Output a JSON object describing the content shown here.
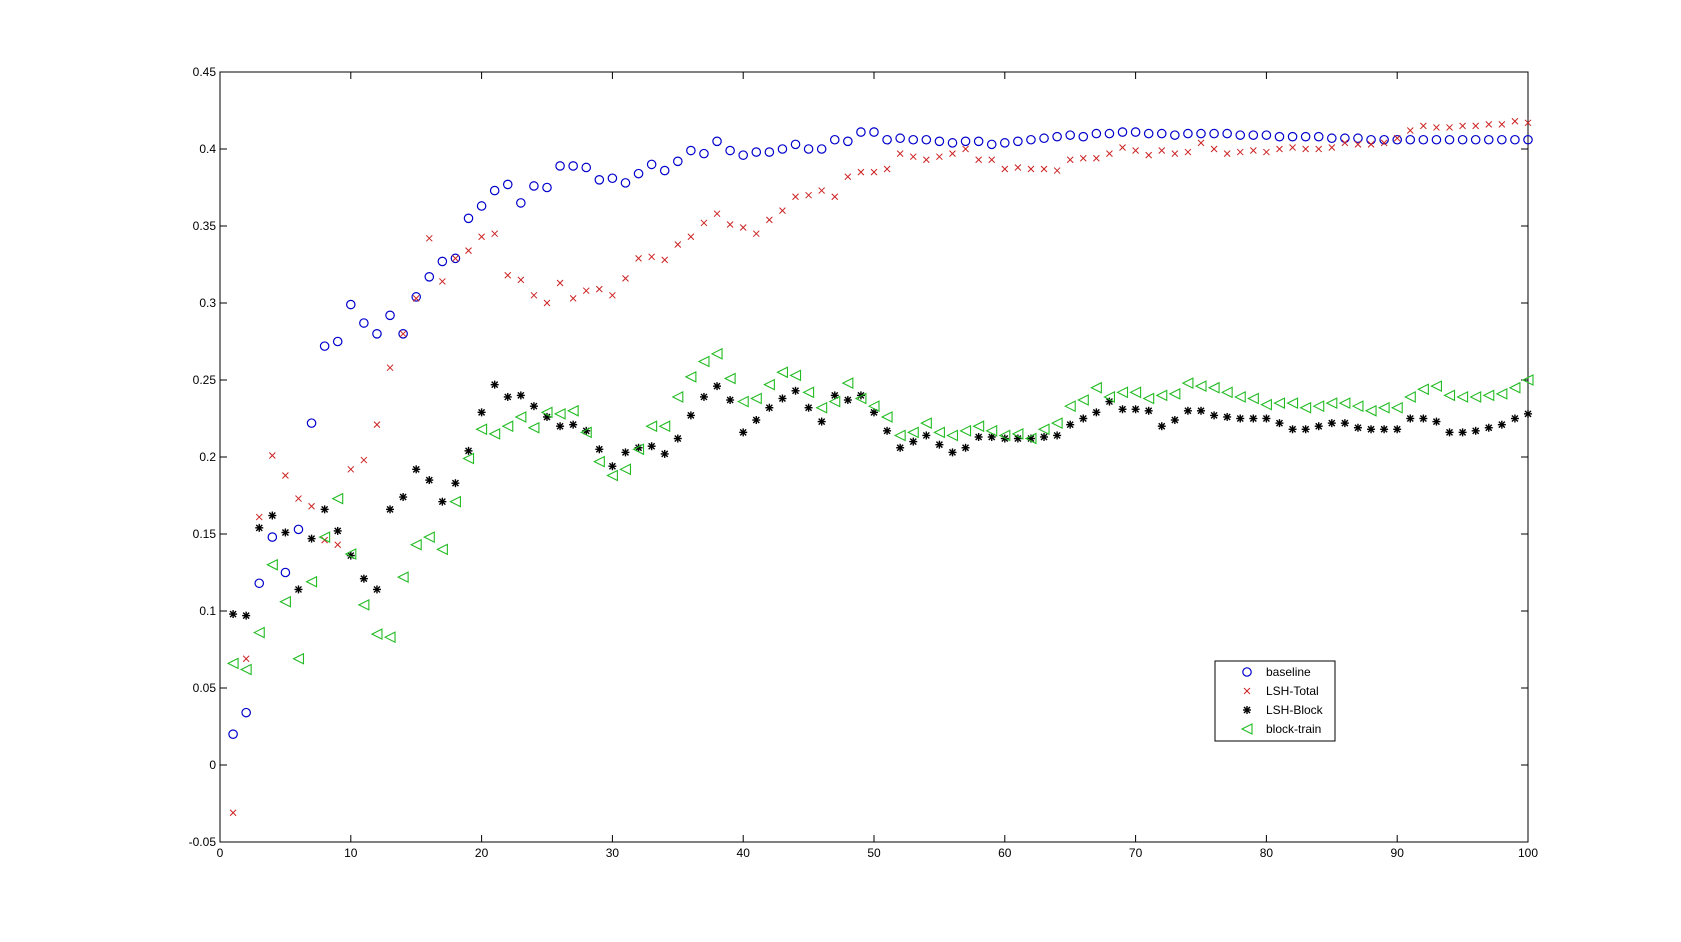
{
  "chart_data": {
    "type": "scatter",
    "title": "",
    "xlabel": "",
    "ylabel": "",
    "xlim": [
      0,
      100
    ],
    "ylim": [
      -0.05,
      0.45
    ],
    "xticks": [
      0,
      10,
      20,
      30,
      40,
      50,
      60,
      70,
      80,
      90,
      100
    ],
    "yticks": [
      -0.05,
      0,
      0.05,
      0.1,
      0.15,
      0.2,
      0.25,
      0.3,
      0.35,
      0.4,
      0.45
    ],
    "xtick_labels": [
      "0",
      "10",
      "20",
      "30",
      "40",
      "50",
      "60",
      "70",
      "80",
      "90",
      "100"
    ],
    "ytick_labels": [
      "-0.05",
      "0",
      "0.05",
      "0.1",
      "0.15",
      "0.2",
      "0.25",
      "0.3",
      "0.35",
      "0.4",
      "0.45"
    ],
    "grid": false,
    "legend_position": "lower-right",
    "x": [
      1,
      2,
      3,
      4,
      5,
      6,
      7,
      8,
      9,
      10,
      11,
      12,
      13,
      14,
      15,
      16,
      17,
      18,
      19,
      20,
      21,
      22,
      23,
      24,
      25,
      26,
      27,
      28,
      29,
      30,
      31,
      32,
      33,
      34,
      35,
      36,
      37,
      38,
      39,
      40,
      41,
      42,
      43,
      44,
      45,
      46,
      47,
      48,
      49,
      50,
      51,
      52,
      53,
      54,
      55,
      56,
      57,
      58,
      59,
      60,
      61,
      62,
      63,
      64,
      65,
      66,
      67,
      68,
      69,
      70,
      71,
      72,
      73,
      74,
      75,
      76,
      77,
      78,
      79,
      80,
      81,
      82,
      83,
      84,
      85,
      86,
      87,
      88,
      89,
      90,
      91,
      92,
      93,
      94,
      95,
      96,
      97,
      98,
      99,
      100
    ],
    "series": [
      {
        "name": "baseline",
        "marker": "circle",
        "color": "#0000cc",
        "values": [
          0.02,
          0.034,
          0.118,
          0.148,
          0.125,
          0.153,
          0.222,
          0.272,
          0.275,
          0.299,
          0.287,
          0.28,
          0.292,
          0.28,
          0.304,
          0.317,
          0.327,
          0.329,
          0.355,
          0.363,
          0.373,
          0.377,
          0.365,
          0.376,
          0.375,
          0.389,
          0.389,
          0.388,
          0.38,
          0.381,
          0.378,
          0.384,
          0.39,
          0.386,
          0.392,
          0.399,
          0.397,
          0.405,
          0.399,
          0.396,
          0.398,
          0.398,
          0.4,
          0.403,
          0.4,
          0.4,
          0.406,
          0.405,
          0.411,
          0.411,
          0.406,
          0.407,
          0.406,
          0.406,
          0.405,
          0.404,
          0.405,
          0.405,
          0.403,
          0.404,
          0.405,
          0.406,
          0.407,
          0.408,
          0.409,
          0.408,
          0.41,
          0.41,
          0.411,
          0.411,
          0.41,
          0.41,
          0.409,
          0.41,
          0.41,
          0.41,
          0.41,
          0.409,
          0.409,
          0.409,
          0.408,
          0.408,
          0.408,
          0.408,
          0.407,
          0.407,
          0.407,
          0.406,
          0.406,
          0.406,
          0.406,
          0.406,
          0.406,
          0.406,
          0.406,
          0.406,
          0.406,
          0.406,
          0.406,
          0.406
        ]
      },
      {
        "name": "LSH-Total",
        "marker": "x",
        "color": "#cc2222",
        "values": [
          -0.031,
          0.069,
          0.161,
          0.201,
          0.188,
          0.173,
          0.168,
          0.146,
          0.143,
          0.192,
          0.198,
          0.221,
          0.258,
          0.28,
          0.303,
          0.342,
          0.314,
          0.329,
          0.334,
          0.343,
          0.345,
          0.318,
          0.315,
          0.305,
          0.3,
          0.313,
          0.303,
          0.308,
          0.309,
          0.305,
          0.316,
          0.329,
          0.33,
          0.328,
          0.338,
          0.343,
          0.352,
          0.358,
          0.351,
          0.349,
          0.345,
          0.354,
          0.36,
          0.369,
          0.37,
          0.373,
          0.369,
          0.382,
          0.385,
          0.385,
          0.387,
          0.397,
          0.395,
          0.393,
          0.395,
          0.397,
          0.4,
          0.393,
          0.393,
          0.387,
          0.388,
          0.387,
          0.387,
          0.386,
          0.393,
          0.394,
          0.394,
          0.397,
          0.401,
          0.399,
          0.396,
          0.399,
          0.397,
          0.398,
          0.404,
          0.4,
          0.397,
          0.398,
          0.399,
          0.398,
          0.4,
          0.401,
          0.4,
          0.4,
          0.401,
          0.404,
          0.403,
          0.403,
          0.404,
          0.407,
          0.412,
          0.415,
          0.414,
          0.414,
          0.415,
          0.415,
          0.416,
          0.416,
          0.418,
          0.417
        ]
      },
      {
        "name": "LSH-Block",
        "marker": "asterisk",
        "color": "#000000",
        "values": [
          0.098,
          0.097,
          0.154,
          0.162,
          0.151,
          0.114,
          0.147,
          0.166,
          0.152,
          0.136,
          0.121,
          0.114,
          0.166,
          0.174,
          0.192,
          0.185,
          0.171,
          0.183,
          0.204,
          0.229,
          0.247,
          0.239,
          0.24,
          0.233,
          0.226,
          0.22,
          0.221,
          0.217,
          0.205,
          0.194,
          0.203,
          0.206,
          0.207,
          0.202,
          0.212,
          0.227,
          0.239,
          0.246,
          0.237,
          0.216,
          0.224,
          0.232,
          0.238,
          0.243,
          0.232,
          0.223,
          0.24,
          0.237,
          0.24,
          0.229,
          0.217,
          0.206,
          0.21,
          0.214,
          0.208,
          0.203,
          0.206,
          0.213,
          0.213,
          0.212,
          0.212,
          0.212,
          0.213,
          0.214,
          0.221,
          0.225,
          0.229,
          0.236,
          0.231,
          0.231,
          0.23,
          0.22,
          0.224,
          0.23,
          0.23,
          0.227,
          0.226,
          0.225,
          0.225,
          0.225,
          0.222,
          0.218,
          0.218,
          0.22,
          0.222,
          0.222,
          0.219,
          0.218,
          0.218,
          0.218,
          0.225,
          0.225,
          0.223,
          0.216,
          0.216,
          0.217,
          0.219,
          0.221,
          0.225,
          0.228
        ]
      },
      {
        "name": "block-train",
        "marker": "triangle-left",
        "color": "#22bb22",
        "values": [
          0.066,
          0.062,
          0.086,
          0.13,
          0.106,
          0.069,
          0.119,
          0.148,
          0.173,
          0.137,
          0.104,
          0.085,
          0.083,
          0.122,
          0.143,
          0.148,
          0.14,
          0.171,
          0.199,
          0.218,
          0.215,
          0.22,
          0.226,
          0.219,
          0.229,
          0.228,
          0.23,
          0.216,
          0.197,
          0.188,
          0.192,
          0.205,
          0.22,
          0.22,
          0.239,
          0.252,
          0.262,
          0.267,
          0.251,
          0.236,
          0.238,
          0.247,
          0.255,
          0.253,
          0.242,
          0.232,
          0.236,
          0.248,
          0.238,
          0.233,
          0.226,
          0.214,
          0.216,
          0.222,
          0.216,
          0.214,
          0.217,
          0.22,
          0.217,
          0.214,
          0.215,
          0.212,
          0.218,
          0.222,
          0.233,
          0.237,
          0.245,
          0.239,
          0.242,
          0.242,
          0.238,
          0.24,
          0.241,
          0.248,
          0.246,
          0.245,
          0.242,
          0.239,
          0.238,
          0.234,
          0.235,
          0.235,
          0.232,
          0.233,
          0.235,
          0.235,
          0.233,
          0.23,
          0.232,
          0.232,
          0.239,
          0.244,
          0.246,
          0.24,
          0.239,
          0.239,
          0.24,
          0.241,
          0.245,
          0.25
        ]
      }
    ]
  }
}
